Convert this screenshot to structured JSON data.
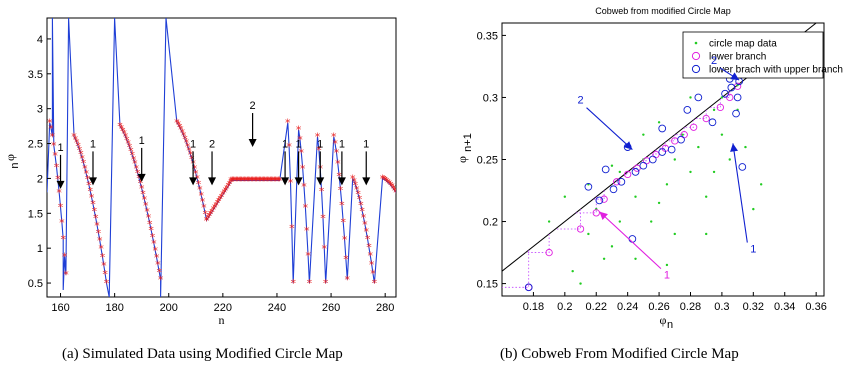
{
  "charts": [
    {
      "type": "line",
      "xlabel": "n",
      "ylabel": "φ",
      "ylabel_sub": "n",
      "xlim": [
        155,
        284
      ],
      "ylim": [
        0.3,
        4.3
      ],
      "xticks": [
        160,
        180,
        200,
        220,
        240,
        260,
        280
      ],
      "yticks": [
        0.5,
        1,
        1.5,
        2,
        2.5,
        3,
        3.5,
        4
      ],
      "line_color": "#1f3fd6",
      "marker_color": "#e81e1e",
      "segments": [
        {
          "n0": 156,
          "n1": 162,
          "y0": 2.8,
          "y1": 0.62
        },
        {
          "n0": 165,
          "n1": 177,
          "y0": 2.6,
          "y1": 0.5
        },
        {
          "n0": 182,
          "n1": 197,
          "y0": 2.75,
          "y1": 0.55
        },
        {
          "n0": 203,
          "n1": 214,
          "y0": 2.8,
          "y1": 1.4
        },
        {
          "n0": 214,
          "n1": 223,
          "y0": 1.4,
          "y1": 1.95
        },
        {
          "n0": 223,
          "n1": 241,
          "y0": 1.97,
          "y1": 1.97
        },
        {
          "n0": 244,
          "n1": 246,
          "y0": 2.8,
          "y1": 0.5
        },
        {
          "n0": 248,
          "n1": 252,
          "y0": 2.7,
          "y1": 0.5
        },
        {
          "n0": 255,
          "n1": 258,
          "y0": 2.6,
          "y1": 0.5
        },
        {
          "n0": 261,
          "n1": 266,
          "y0": 2.6,
          "y1": 0.55
        },
        {
          "n0": 268,
          "n1": 276,
          "y0": 2.0,
          "y1": 0.5
        },
        {
          "n0": 279,
          "n1": 284,
          "y0": 2.0,
          "y1": 1.8
        }
      ],
      "extra_line_points": [
        {
          "x": 155,
          "y": 1.8
        },
        {
          "x": 157,
          "y": 4.3
        },
        {
          "x": 161,
          "y": 0.4
        },
        {
          "x": 163,
          "y": 4.3
        },
        {
          "x": 165,
          "y": 2.6
        },
        {
          "x": 178,
          "y": 0.3
        },
        {
          "x": 180,
          "y": 4.3
        },
        {
          "x": 182,
          "y": 2.75
        },
        {
          "x": 197,
          "y": 0.3
        },
        {
          "x": 199,
          "y": 4.3
        },
        {
          "x": 203,
          "y": 2.8
        }
      ],
      "annotations": [
        {
          "text": "1",
          "x": 160,
          "y": 1.85
        },
        {
          "text": "1",
          "x": 172,
          "y": 1.9
        },
        {
          "text": "1",
          "x": 190,
          "y": 1.95
        },
        {
          "text": "1",
          "x": 209,
          "y": 1.9
        },
        {
          "text": "2",
          "x": 216,
          "y": 1.9
        },
        {
          "text": "2",
          "x": 231,
          "y": 2.45
        },
        {
          "text": "1",
          "x": 243,
          "y": 1.9
        },
        {
          "text": "1",
          "x": 248,
          "y": 1.9
        },
        {
          "text": "1",
          "x": 256,
          "y": 1.9
        },
        {
          "text": "1",
          "x": 264,
          "y": 1.9
        },
        {
          "text": "1",
          "x": 273,
          "y": 1.9
        }
      ],
      "caption": "(a)  Simulated Data using Modified Circle Map"
    },
    {
      "type": "scatter",
      "title": "Cobweb from modified Circle Map",
      "xlabel": "φ",
      "xlabel_sub": "n",
      "ylabel": "φ",
      "ylabel_sub": "n+1",
      "xlim": [
        0.16,
        0.365
      ],
      "ylim": [
        0.14,
        0.36
      ],
      "xticks": [
        0.18,
        0.2,
        0.22,
        0.24,
        0.26,
        0.28,
        0.3,
        0.32,
        0.34,
        0.36
      ],
      "yticks": [
        0.15,
        0.2,
        0.25,
        0.3,
        0.35
      ],
      "diagonal_color": "#000000",
      "cobweb_color": "#c040ff",
      "legend": [
        {
          "label": "circle map data",
          "color": "#22cc22",
          "marker": "dot"
        },
        {
          "label": "lower branch",
          "color": "#e020e0",
          "marker": "circle"
        },
        {
          "label": "lower brach with upper branch",
          "color": "#1020d0",
          "marker": "circle"
        }
      ],
      "green": [
        [
          0.19,
          0.2
        ],
        [
          0.2,
          0.22
        ],
        [
          0.21,
          0.15
        ],
        [
          0.215,
          0.23
        ],
        [
          0.22,
          0.21
        ],
        [
          0.225,
          0.17
        ],
        [
          0.23,
          0.245
        ],
        [
          0.235,
          0.2
        ],
        [
          0.24,
          0.26
        ],
        [
          0.245,
          0.17
        ],
        [
          0.25,
          0.25
        ],
        [
          0.255,
          0.2
        ],
        [
          0.26,
          0.28
        ],
        [
          0.265,
          0.23
        ],
        [
          0.27,
          0.19
        ],
        [
          0.275,
          0.27
        ],
        [
          0.28,
          0.24
        ],
        [
          0.285,
          0.26
        ],
        [
          0.29,
          0.22
        ],
        [
          0.295,
          0.29
        ],
        [
          0.3,
          0.3
        ],
        [
          0.305,
          0.25
        ],
        [
          0.31,
          0.31
        ],
        [
          0.315,
          0.26
        ],
        [
          0.32,
          0.21
        ],
        [
          0.325,
          0.23
        ],
        [
          0.205,
          0.16
        ],
        [
          0.245,
          0.22
        ],
        [
          0.265,
          0.165
        ],
        [
          0.29,
          0.19
        ],
        [
          0.27,
          0.25
        ],
        [
          0.26,
          0.215
        ],
        [
          0.23,
          0.18
        ],
        [
          0.3,
          0.27
        ],
        [
          0.28,
          0.3
        ],
        [
          0.25,
          0.27
        ],
        [
          0.235,
          0.24
        ],
        [
          0.215,
          0.19
        ],
        [
          0.31,
          0.29
        ],
        [
          0.295,
          0.24
        ]
      ],
      "magenta": [
        [
          0.177,
          0.147
        ],
        [
          0.19,
          0.175
        ],
        [
          0.21,
          0.194
        ],
        [
          0.22,
          0.207
        ],
        [
          0.225,
          0.218
        ],
        [
          0.233,
          0.232
        ],
        [
          0.24,
          0.238
        ],
        [
          0.246,
          0.243
        ],
        [
          0.252,
          0.249
        ],
        [
          0.258,
          0.254
        ],
        [
          0.264,
          0.259
        ],
        [
          0.27,
          0.265
        ],
        [
          0.276,
          0.27
        ],
        [
          0.282,
          0.276
        ],
        [
          0.29,
          0.283
        ],
        [
          0.299,
          0.292
        ],
        [
          0.305,
          0.3
        ],
        [
          0.31,
          0.309
        ]
      ],
      "blue": [
        [
          0.177,
          0.147
        ],
        [
          0.215,
          0.228
        ],
        [
          0.222,
          0.217
        ],
        [
          0.226,
          0.242
        ],
        [
          0.231,
          0.226
        ],
        [
          0.24,
          0.26
        ],
        [
          0.236,
          0.232
        ],
        [
          0.243,
          0.186
        ],
        [
          0.245,
          0.24
        ],
        [
          0.25,
          0.245
        ],
        [
          0.256,
          0.25
        ],
        [
          0.262,
          0.275
        ],
        [
          0.262,
          0.256
        ],
        [
          0.268,
          0.258
        ],
        [
          0.274,
          0.266
        ],
        [
          0.278,
          0.29
        ],
        [
          0.285,
          0.3
        ],
        [
          0.294,
          0.28
        ],
        [
          0.302,
          0.303
        ],
        [
          0.306,
          0.308
        ],
        [
          0.309,
          0.287
        ],
        [
          0.311,
          0.313
        ],
        [
          0.313,
          0.244
        ],
        [
          0.305,
          0.315
        ],
        [
          0.31,
          0.3
        ]
      ],
      "annotations": [
        {
          "text": "2",
          "x": 0.21,
          "y": 0.295,
          "color": "#1020d0"
        },
        {
          "text": "2",
          "x": 0.295,
          "y": 0.327,
          "color": "#1020d0"
        },
        {
          "text": "1",
          "x": 0.32,
          "y": 0.175,
          "color": "#1020d0"
        },
        {
          "text": "1",
          "x": 0.265,
          "y": 0.154,
          "color": "#e020e0"
        }
      ],
      "caption": "(b)  Cobweb From Modified Circle Map"
    }
  ]
}
